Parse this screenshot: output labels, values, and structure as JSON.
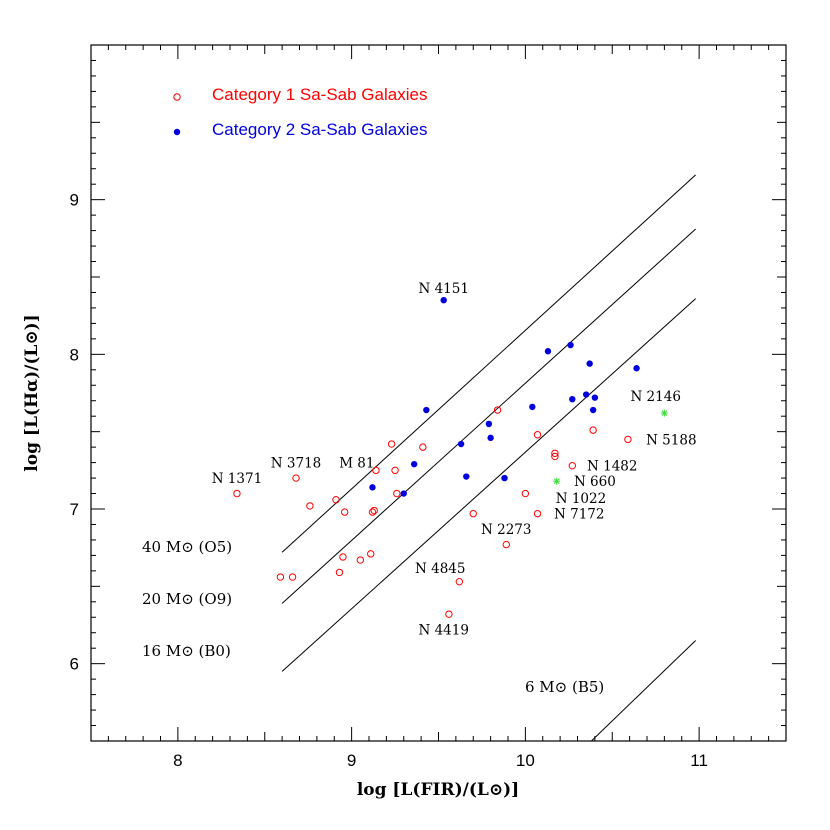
{
  "chart_data": {
    "type": "scatter",
    "xlabel": "log [L(FIR)/(L⊙)]",
    "ylabel": "log [L(Hα)/(L⊙)]",
    "xlim": [
      7.5,
      11.5
    ],
    "ylim": [
      5.5,
      10.0
    ],
    "x_ticks": [
      8,
      9,
      10,
      11
    ],
    "y_ticks": [
      6,
      7,
      8,
      9
    ],
    "grid": false,
    "legend_position": "top-left",
    "series": [
      {
        "name": "Category 1 Sa-Sab Galaxies",
        "marker": "open-circle",
        "color": "#ff0000",
        "points": [
          [
            8.34,
            7.1
          ],
          [
            8.59,
            6.56
          ],
          [
            8.66,
            6.56
          ],
          [
            8.68,
            7.2
          ],
          [
            8.76,
            7.02
          ],
          [
            8.91,
            7.06
          ],
          [
            8.93,
            6.59
          ],
          [
            8.95,
            6.69
          ],
          [
            8.96,
            6.98
          ],
          [
            9.05,
            6.67
          ],
          [
            9.11,
            6.71
          ],
          [
            9.12,
            6.98
          ],
          [
            9.13,
            6.99
          ],
          [
            9.14,
            7.25
          ],
          [
            9.23,
            7.42
          ],
          [
            9.25,
            7.25
          ],
          [
            9.26,
            7.1
          ],
          [
            9.41,
            7.4
          ],
          [
            9.56,
            6.32
          ],
          [
            9.62,
            6.53
          ],
          [
            9.7,
            6.97
          ],
          [
            9.84,
            7.64
          ],
          [
            9.89,
            6.77
          ],
          [
            10.0,
            7.1
          ],
          [
            10.07,
            6.97
          ],
          [
            10.07,
            7.48
          ],
          [
            10.17,
            7.36
          ],
          [
            10.17,
            7.34
          ],
          [
            10.27,
            7.28
          ],
          [
            10.39,
            7.51
          ],
          [
            10.59,
            7.45
          ]
        ]
      },
      {
        "name": "Category 2 Sa-Sab Galaxies",
        "marker": "filled-circle",
        "color": "#0000dd",
        "points": [
          [
            9.12,
            7.14
          ],
          [
            9.3,
            7.1
          ],
          [
            9.36,
            7.29
          ],
          [
            9.43,
            7.64
          ],
          [
            9.53,
            8.35
          ],
          [
            9.63,
            7.42
          ],
          [
            9.66,
            7.21
          ],
          [
            9.79,
            7.55
          ],
          [
            9.8,
            7.46
          ],
          [
            9.88,
            7.2
          ],
          [
            10.04,
            7.66
          ],
          [
            10.13,
            8.02
          ],
          [
            10.26,
            8.06
          ],
          [
            10.27,
            7.71
          ],
          [
            10.35,
            7.74
          ],
          [
            10.37,
            7.94
          ],
          [
            10.39,
            7.64
          ],
          [
            10.4,
            7.72
          ],
          [
            10.64,
            7.91
          ]
        ]
      },
      {
        "marker": "asterisk",
        "color": "#33dd33",
        "points": [
          [
            10.18,
            7.18
          ],
          [
            10.8,
            7.62
          ]
        ]
      }
    ],
    "lines": [
      {
        "label": "40 M⊙ (O5)",
        "x": [
          8.6,
          10.98
        ],
        "y": [
          6.72,
          9.16
        ]
      },
      {
        "label": "20 M⊙ (O9)",
        "x": [
          8.6,
          10.98
        ],
        "y": [
          6.39,
          8.81
        ]
      },
      {
        "label": "16 M⊙ (B0)",
        "x": [
          8.6,
          10.98
        ],
        "y": [
          5.95,
          8.36
        ]
      },
      {
        "label": "6 M⊙ (B5)",
        "x": [
          10.38,
          10.98
        ],
        "y": [
          5.5,
          6.15
        ]
      }
    ],
    "annotations": [
      {
        "text": "N 4151",
        "x": 9.53,
        "y": 8.43
      },
      {
        "text": "N 1371",
        "x": 8.34,
        "y": 7.2
      },
      {
        "text": "N 3718",
        "x": 8.68,
        "y": 7.3
      },
      {
        "text": "M 81",
        "x": 9.03,
        "y": 7.3
      },
      {
        "text": "N 2146",
        "x": 10.75,
        "y": 7.73
      },
      {
        "text": "N 5188",
        "x": 10.84,
        "y": 7.45
      },
      {
        "text": "N 1482",
        "x": 10.5,
        "y": 7.28
      },
      {
        "text": "N 660",
        "x": 10.4,
        "y": 7.18
      },
      {
        "text": "N 1022",
        "x": 10.32,
        "y": 7.07
      },
      {
        "text": "N 7172",
        "x": 10.31,
        "y": 6.97
      },
      {
        "text": "N 2273",
        "x": 9.89,
        "y": 6.87
      },
      {
        "text": "N 4845",
        "x": 9.51,
        "y": 6.62
      },
      {
        "text": "N 4419",
        "x": 9.53,
        "y": 6.22
      }
    ]
  }
}
